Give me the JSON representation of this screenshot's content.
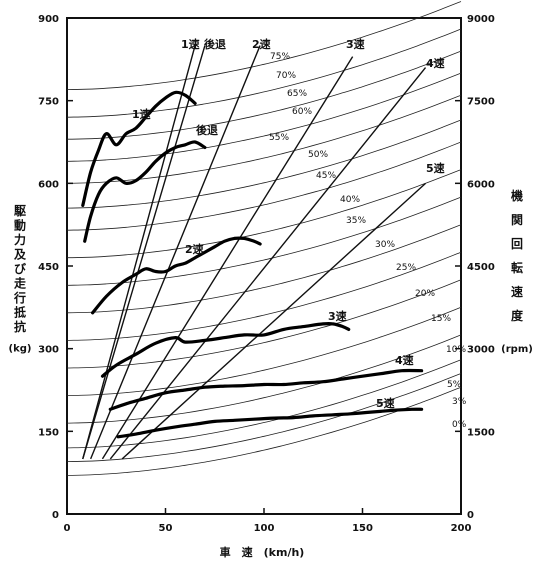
{
  "chart_data": {
    "type": "line",
    "xlabel": "車　速　(km/h)",
    "ylabel_left": [
      "駆",
      "動",
      "力",
      "及",
      "び",
      "走",
      "行",
      "抵",
      "抗",
      "(kg)"
    ],
    "ylabel_right": [
      "機",
      "関",
      "回",
      "転",
      "速",
      "度",
      "(rpm)"
    ],
    "xlim": [
      0,
      200
    ],
    "ylim_left": [
      0,
      900
    ],
    "ylim_right": [
      0,
      9000
    ],
    "x_ticks": [
      "0",
      "50",
      "100",
      "150",
      "200"
    ],
    "x_tick_values": [
      0,
      50,
      100,
      150,
      200
    ],
    "y_left_ticks": [
      "0",
      "150",
      "300",
      "450",
      "600",
      "750",
      "900"
    ],
    "y_left_tick_values": [
      0,
      150,
      300,
      450,
      600,
      750,
      900
    ],
    "y_right_ticks": [
      "0",
      "1500",
      "3000",
      "4500",
      "6000",
      "7500",
      "9000"
    ],
    "y_right_tick_values": [
      0,
      1500,
      3000,
      4500,
      6000,
      7500,
      9000
    ],
    "gear_rpm_lines": [
      {
        "name": "1速",
        "x": [
          8,
          65
        ],
        "rpm": [
          1000,
          8500
        ]
      },
      {
        "name": "後退",
        "x": [
          8,
          70
        ],
        "rpm": [
          1000,
          8500
        ]
      },
      {
        "name": "2速",
        "x": [
          12,
          98
        ],
        "rpm": [
          1000,
          8500
        ]
      },
      {
        "name": "3速",
        "x": [
          18,
          145
        ],
        "rpm": [
          1000,
          8300
        ]
      },
      {
        "name": "4速",
        "x": [
          22,
          182
        ],
        "rpm": [
          1000,
          8100
        ]
      },
      {
        "name": "5速",
        "x": [
          28,
          182
        ],
        "rpm": [
          1000,
          6000
        ]
      }
    ],
    "traction_curves": [
      {
        "name": "1速",
        "x": [
          8,
          12,
          16,
          20,
          25,
          30,
          35,
          40,
          45,
          50,
          55,
          60,
          65
        ],
        "y": [
          560,
          620,
          660,
          690,
          670,
          690,
          700,
          720,
          740,
          755,
          765,
          760,
          745
        ]
      },
      {
        "name": "後退",
        "x": [
          9,
          12,
          16,
          20,
          25,
          30,
          35,
          40,
          45,
          50,
          55,
          60,
          65,
          70
        ],
        "y": [
          495,
          540,
          580,
          600,
          610,
          600,
          605,
          620,
          640,
          655,
          665,
          670,
          675,
          665
        ]
      },
      {
        "name": "2速",
        "x": [
          13,
          20,
          28,
          35,
          40,
          45,
          50,
          55,
          60,
          65,
          70,
          75,
          80,
          85,
          90,
          95,
          98
        ],
        "y": [
          365,
          395,
          420,
          435,
          445,
          440,
          440,
          450,
          455,
          465,
          475,
          485,
          495,
          500,
          500,
          495,
          490
        ]
      },
      {
        "name": "3速",
        "x": [
          18,
          25,
          35,
          45,
          55,
          60,
          70,
          80,
          90,
          100,
          110,
          120,
          130,
          135,
          140,
          143
        ],
        "y": [
          250,
          270,
          290,
          310,
          320,
          312,
          315,
          320,
          325,
          325,
          335,
          340,
          345,
          345,
          340,
          335
        ]
      },
      {
        "name": "4速",
        "x": [
          22,
          30,
          40,
          50,
          60,
          70,
          80,
          90,
          100,
          110,
          120,
          130,
          140,
          150,
          160,
          170,
          180
        ],
        "y": [
          190,
          200,
          210,
          220,
          225,
          230,
          232,
          233,
          235,
          235,
          238,
          240,
          245,
          250,
          255,
          260,
          260
        ]
      },
      {
        "name": "5速",
        "x": [
          26,
          35,
          45,
          55,
          65,
          75,
          85,
          95,
          105,
          115,
          125,
          135,
          145,
          155,
          165,
          175,
          180
        ],
        "y": [
          140,
          145,
          152,
          158,
          163,
          168,
          170,
          172,
          174,
          175,
          178,
          180,
          182,
          185,
          188,
          190,
          190
        ]
      }
    ],
    "resistance_curves": [
      {
        "name": "75%",
        "y0": 770,
        "y200": 930
      },
      {
        "name": "70%",
        "y0": 720,
        "y200": 880
      },
      {
        "name": "65%",
        "y0": 680,
        "y200": 840
      },
      {
        "name": "60%",
        "y0": 640,
        "y200": 800
      },
      {
        "name": "55%",
        "y0": 600,
        "y200": 760
      },
      {
        "name": "50%",
        "y0": 555,
        "y200": 715
      },
      {
        "name": "45%",
        "y0": 515,
        "y200": 675
      },
      {
        "name": "40%",
        "y0": 465,
        "y200": 625
      },
      {
        "name": "35%",
        "y0": 415,
        "y200": 575
      },
      {
        "name": "30%",
        "y0": 365,
        "y200": 525
      },
      {
        "name": "25%",
        "y0": 315,
        "y200": 475
      },
      {
        "name": "20%",
        "y0": 265,
        "y200": 425
      },
      {
        "name": "15%",
        "y0": 215,
        "y200": 375
      },
      {
        "name": "10%",
        "y0": 165,
        "y200": 325
      },
      {
        "name": "5%",
        "y0": 120,
        "y200": 280
      },
      {
        "name": "3%",
        "y0": 95,
        "y200": 255
      },
      {
        "name": "0%",
        "y0": 70,
        "y200": 230
      }
    ]
  }
}
